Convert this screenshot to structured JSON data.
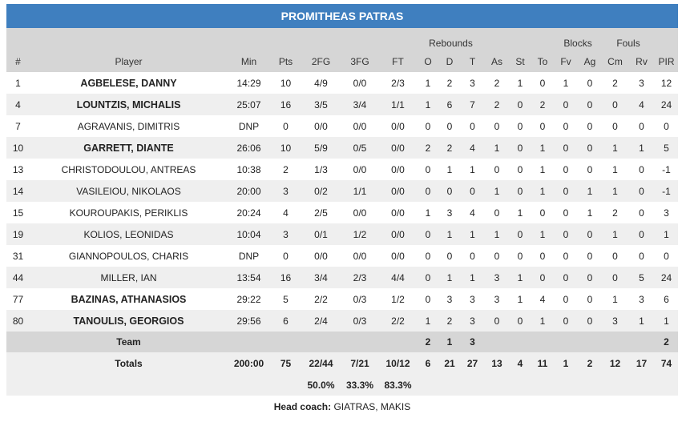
{
  "team_name": "PROMITHEAS PATRAS",
  "group_headers": {
    "rebounds": "Rebounds",
    "blocks": "Blocks",
    "fouls": "Fouls"
  },
  "columns": [
    "#",
    "Player",
    "Min",
    "Pts",
    "2FG",
    "3FG",
    "FT",
    "O",
    "D",
    "T",
    "As",
    "St",
    "To",
    "Fv",
    "Ag",
    "Cm",
    "Rv",
    "PIR"
  ],
  "players": [
    {
      "starter": true,
      "cells": [
        "1",
        "AGBELESE, DANNY",
        "14:29",
        "10",
        "4/9",
        "0/0",
        "2/3",
        "1",
        "2",
        "3",
        "2",
        "1",
        "0",
        "1",
        "0",
        "2",
        "3",
        "12"
      ]
    },
    {
      "starter": true,
      "cells": [
        "4",
        "LOUNTZIS, MICHALIS",
        "25:07",
        "16",
        "3/5",
        "3/4",
        "1/1",
        "1",
        "6",
        "7",
        "2",
        "0",
        "2",
        "0",
        "0",
        "0",
        "4",
        "24"
      ]
    },
    {
      "starter": false,
      "cells": [
        "7",
        "AGRAVANIS, DIMITRIS",
        "DNP",
        "0",
        "0/0",
        "0/0",
        "0/0",
        "0",
        "0",
        "0",
        "0",
        "0",
        "0",
        "0",
        "0",
        "0",
        "0",
        "0"
      ]
    },
    {
      "starter": true,
      "cells": [
        "10",
        "GARRETT, DIANTE",
        "26:06",
        "10",
        "5/9",
        "0/5",
        "0/0",
        "2",
        "2",
        "4",
        "1",
        "0",
        "1",
        "0",
        "0",
        "1",
        "1",
        "5"
      ]
    },
    {
      "starter": false,
      "cells": [
        "13",
        "CHRISTODOULOU, ANTREAS",
        "10:38",
        "2",
        "1/3",
        "0/0",
        "0/0",
        "0",
        "1",
        "1",
        "0",
        "0",
        "1",
        "0",
        "0",
        "1",
        "0",
        "-1"
      ]
    },
    {
      "starter": false,
      "cells": [
        "14",
        "VASILEIOU, NIKOLAOS",
        "20:00",
        "3",
        "0/2",
        "1/1",
        "0/0",
        "0",
        "0",
        "0",
        "1",
        "0",
        "1",
        "0",
        "1",
        "1",
        "0",
        "-1"
      ]
    },
    {
      "starter": false,
      "cells": [
        "15",
        "KOUROUPAKIS, PERIKLIS",
        "20:24",
        "4",
        "2/5",
        "0/0",
        "0/0",
        "1",
        "3",
        "4",
        "0",
        "1",
        "0",
        "0",
        "1",
        "2",
        "0",
        "3"
      ]
    },
    {
      "starter": false,
      "cells": [
        "19",
        "KOLIOS, LEONIDAS",
        "10:04",
        "3",
        "0/1",
        "1/2",
        "0/0",
        "0",
        "1",
        "1",
        "1",
        "0",
        "1",
        "0",
        "0",
        "1",
        "0",
        "1"
      ]
    },
    {
      "starter": false,
      "cells": [
        "31",
        "GIANNOPOULOS, CHARIS",
        "DNP",
        "0",
        "0/0",
        "0/0",
        "0/0",
        "0",
        "0",
        "0",
        "0",
        "0",
        "0",
        "0",
        "0",
        "0",
        "0",
        "0"
      ]
    },
    {
      "starter": false,
      "cells": [
        "44",
        "MILLER, IAN",
        "13:54",
        "16",
        "3/4",
        "2/3",
        "4/4",
        "0",
        "1",
        "1",
        "3",
        "1",
        "0",
        "0",
        "0",
        "0",
        "5",
        "24"
      ]
    },
    {
      "starter": true,
      "cells": [
        "77",
        "BAZINAS, ATHANASIOS",
        "29:22",
        "5",
        "2/2",
        "0/3",
        "1/2",
        "0",
        "3",
        "3",
        "3",
        "1",
        "4",
        "0",
        "0",
        "1",
        "3",
        "6"
      ]
    },
    {
      "starter": true,
      "cells": [
        "80",
        "TANOULIS, GEORGIOS",
        "29:56",
        "6",
        "2/4",
        "0/3",
        "2/2",
        "1",
        "2",
        "3",
        "0",
        "0",
        "1",
        "0",
        "0",
        "3",
        "1",
        "1"
      ]
    }
  ],
  "team_row": {
    "label": "Team",
    "o": "2",
    "d": "1",
    "t": "3",
    "pir": "2"
  },
  "totals": {
    "label": "Totals",
    "cells": [
      "200:00",
      "75",
      "22/44",
      "7/21",
      "10/12",
      "6",
      "21",
      "27",
      "13",
      "4",
      "11",
      "1",
      "2",
      "12",
      "17",
      "74"
    ]
  },
  "percentages": {
    "fg2": "50.0%",
    "fg3": "33.3%",
    "ft": "83.3%"
  },
  "head_coach": {
    "label": "Head coach:",
    "name": "GIATRAS, MAKIS"
  }
}
